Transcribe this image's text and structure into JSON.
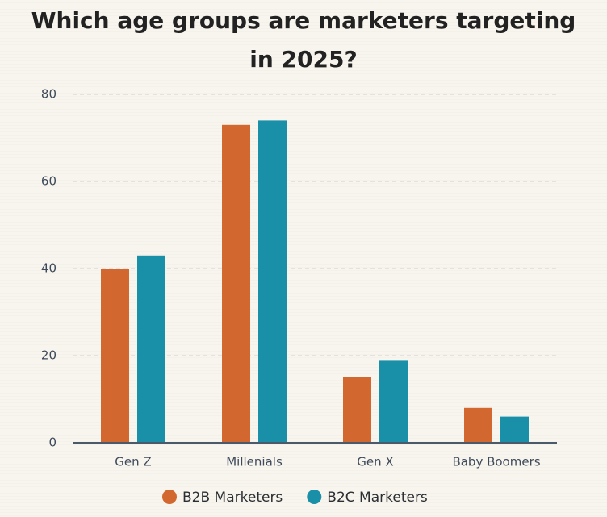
{
  "chart_data": {
    "type": "bar",
    "title": "Which age groups are marketers targeting in 2025?",
    "categories": [
      "Gen Z",
      "Millenials",
      "Gen X",
      "Baby Boomers"
    ],
    "series": [
      {
        "name": "B2B Marketers",
        "color": "#d2672f",
        "values": [
          40,
          73,
          15,
          8
        ]
      },
      {
        "name": "B2C Marketers",
        "color": "#1a8fa8",
        "values": [
          43,
          74,
          19,
          6
        ]
      }
    ],
    "ylim": [
      0,
      80
    ],
    "yticks": [
      0,
      20,
      40,
      60,
      80
    ],
    "grid": true,
    "legend": "bottom"
  }
}
